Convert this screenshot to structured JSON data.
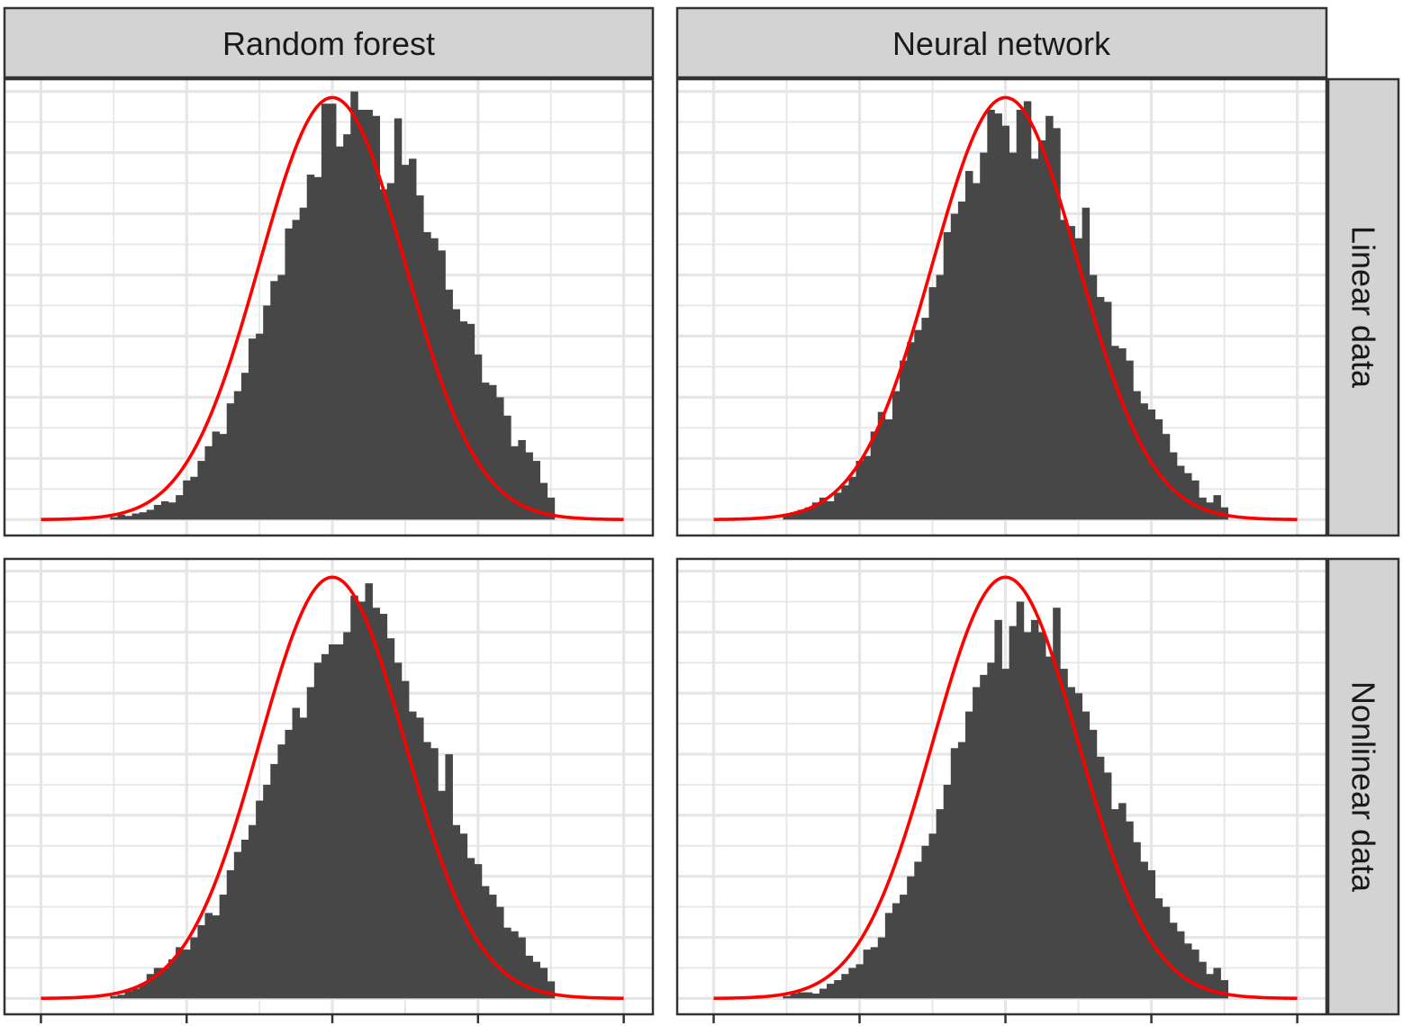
{
  "facets": {
    "columns": [
      "Random forest",
      "Neural network"
    ],
    "rows": [
      "Linear data",
      "Nonlinear data"
    ]
  },
  "colors": {
    "bars": "#474747",
    "curve": "#ff0000",
    "strip_fill": "#d3d3d3",
    "grid": "#e6e6e6",
    "panel_border": "#333333"
  },
  "chart_data": {
    "type": "bar",
    "description_of_axes": "histograms with overlaid normal density curve; axis tick labels not visible",
    "x_ticks": [
      -4,
      -2,
      0,
      2,
      4
    ],
    "xlim": [
      -4.5,
      4.4
    ],
    "ylim": [
      -0.13,
      3.6
    ],
    "y_ticks": [
      0,
      0.5,
      1,
      1.5,
      2,
      2.5,
      3,
      3.5
    ],
    "bin_width": 0.1,
    "normal_curve_peak": 3.45,
    "panels": [
      {
        "column": "Random forest",
        "row": "Linear data",
        "bins_x": [
          -3.0,
          -2.9,
          -2.8,
          -2.7,
          -2.6,
          -2.5,
          -2.4,
          -2.3,
          -2.2,
          -2.1,
          -2.0,
          -1.9,
          -1.8,
          -1.7,
          -1.6,
          -1.5,
          -1.4,
          -1.3,
          -1.2,
          -1.1,
          -1.0,
          -0.9,
          -0.8,
          -0.7,
          -0.6,
          -0.5,
          -0.4,
          -0.3,
          -0.2,
          -0.1,
          0.0,
          0.1,
          0.2,
          0.3,
          0.4,
          0.5,
          0.6,
          0.7,
          0.8,
          0.9,
          1.0,
          1.1,
          1.2,
          1.3,
          1.4,
          1.5,
          1.6,
          1.7,
          1.8,
          1.9,
          2.0,
          2.1,
          2.2,
          2.3,
          2.4,
          2.5,
          2.6,
          2.7,
          2.8,
          2.9,
          3.0
        ],
        "counts": [
          0.02,
          0.04,
          0.03,
          0.05,
          0.06,
          0.08,
          0.12,
          0.15,
          0.14,
          0.2,
          0.32,
          0.35,
          0.48,
          0.6,
          0.72,
          0.7,
          0.95,
          1.05,
          1.2,
          1.48,
          1.52,
          1.75,
          1.95,
          2.0,
          2.38,
          2.45,
          2.55,
          2.82,
          2.8,
          3.4,
          3.4,
          3.05,
          3.15,
          3.5,
          3.35,
          3.35,
          3.3,
          2.7,
          2.75,
          3.28,
          2.9,
          2.95,
          2.65,
          2.35,
          2.3,
          2.2,
          1.88,
          1.72,
          1.62,
          1.6,
          1.35,
          1.12,
          1.1,
          1.0,
          0.85,
          0.6,
          0.65,
          0.55,
          0.48,
          0.3,
          0.18
        ]
      },
      {
        "column": "Neural network",
        "row": "Linear data",
        "bins_x": [
          -3.0,
          -2.9,
          -2.8,
          -2.7,
          -2.6,
          -2.5,
          -2.4,
          -2.3,
          -2.2,
          -2.1,
          -2.0,
          -1.9,
          -1.8,
          -1.7,
          -1.6,
          -1.5,
          -1.4,
          -1.3,
          -1.2,
          -1.1,
          -1.0,
          -0.9,
          -0.8,
          -0.7,
          -0.6,
          -0.5,
          -0.4,
          -0.3,
          -0.2,
          -0.1,
          0.0,
          0.1,
          0.2,
          0.3,
          0.4,
          0.5,
          0.6,
          0.7,
          0.8,
          0.9,
          1.0,
          1.1,
          1.2,
          1.3,
          1.4,
          1.5,
          1.6,
          1.7,
          1.8,
          1.9,
          2.0,
          2.1,
          2.2,
          2.3,
          2.4,
          2.5,
          2.6,
          2.7,
          2.8,
          2.9,
          3.0
        ],
        "counts": [
          0.03,
          0.06,
          0.08,
          0.1,
          0.14,
          0.18,
          0.15,
          0.22,
          0.28,
          0.35,
          0.48,
          0.52,
          0.72,
          0.88,
          0.82,
          1.05,
          1.3,
          1.45,
          1.55,
          1.65,
          1.9,
          2.0,
          2.35,
          2.5,
          2.6,
          2.85,
          2.75,
          3.0,
          3.35,
          3.32,
          3.22,
          3.0,
          3.35,
          3.42,
          2.95,
          3.1,
          3.3,
          3.2,
          2.45,
          2.4,
          2.3,
          2.55,
          2.0,
          1.82,
          1.78,
          1.42,
          1.4,
          1.3,
          1.05,
          0.95,
          0.9,
          0.82,
          0.7,
          0.55,
          0.44,
          0.38,
          0.32,
          0.18,
          0.14,
          0.2,
          0.1
        ]
      },
      {
        "column": "Random forest",
        "row": "Nonlinear data",
        "bins_x": [
          -3.0,
          -2.9,
          -2.8,
          -2.7,
          -2.6,
          -2.5,
          -2.4,
          -2.3,
          -2.2,
          -2.1,
          -2.0,
          -1.9,
          -1.8,
          -1.7,
          -1.6,
          -1.5,
          -1.4,
          -1.3,
          -1.2,
          -1.1,
          -1.0,
          -0.9,
          -0.8,
          -0.7,
          -0.6,
          -0.5,
          -0.4,
          -0.3,
          -0.2,
          -0.1,
          0.0,
          0.1,
          0.2,
          0.3,
          0.4,
          0.5,
          0.6,
          0.7,
          0.8,
          0.9,
          1.0,
          1.1,
          1.2,
          1.3,
          1.4,
          1.5,
          1.6,
          1.7,
          1.8,
          1.9,
          2.0,
          2.1,
          2.2,
          2.3,
          2.4,
          2.5,
          2.6,
          2.7,
          2.8,
          2.9,
          3.0
        ],
        "counts": [
          0.02,
          0.03,
          0.06,
          0.08,
          0.12,
          0.2,
          0.25,
          0.25,
          0.32,
          0.42,
          0.4,
          0.5,
          0.6,
          0.7,
          0.68,
          0.85,
          1.05,
          1.2,
          1.3,
          1.42,
          1.62,
          1.75,
          1.92,
          2.08,
          2.2,
          2.38,
          2.3,
          2.55,
          2.75,
          2.82,
          2.9,
          2.9,
          3.0,
          3.3,
          3.25,
          3.4,
          3.2,
          3.15,
          2.95,
          2.75,
          2.6,
          2.35,
          2.3,
          2.1,
          2.05,
          1.7,
          2.0,
          1.42,
          1.35,
          1.15,
          1.1,
          0.92,
          0.85,
          0.75,
          0.58,
          0.55,
          0.5,
          0.35,
          0.3,
          0.25,
          0.14
        ]
      },
      {
        "column": "Neural network",
        "row": "Nonlinear data",
        "bins_x": [
          -3.0,
          -2.9,
          -2.8,
          -2.7,
          -2.6,
          -2.5,
          -2.4,
          -2.3,
          -2.2,
          -2.1,
          -2.0,
          -1.9,
          -1.8,
          -1.7,
          -1.6,
          -1.5,
          -1.4,
          -1.3,
          -1.2,
          -1.1,
          -1.0,
          -0.9,
          -0.8,
          -0.7,
          -0.6,
          -0.5,
          -0.4,
          -0.3,
          -0.2,
          -0.1,
          0.0,
          0.1,
          0.2,
          0.3,
          0.4,
          0.5,
          0.6,
          0.7,
          0.8,
          0.9,
          1.0,
          1.1,
          1.2,
          1.3,
          1.4,
          1.5,
          1.6,
          1.7,
          1.8,
          1.9,
          2.0,
          2.1,
          2.2,
          2.3,
          2.4,
          2.5,
          2.6,
          2.7,
          2.8,
          2.9,
          3.0
        ],
        "counts": [
          0.02,
          0.04,
          0.05,
          0.05,
          0.04,
          0.08,
          0.12,
          0.15,
          0.2,
          0.25,
          0.28,
          0.4,
          0.42,
          0.5,
          0.7,
          0.78,
          0.85,
          1.0,
          1.12,
          1.25,
          1.35,
          1.55,
          1.75,
          2.05,
          2.1,
          2.35,
          2.55,
          2.65,
          2.75,
          3.1,
          2.7,
          3.05,
          3.25,
          3.0,
          3.1,
          3.0,
          2.8,
          3.2,
          2.7,
          2.55,
          2.5,
          2.35,
          2.2,
          1.98,
          1.85,
          1.55,
          1.6,
          1.45,
          1.28,
          1.12,
          1.05,
          0.82,
          0.75,
          0.62,
          0.55,
          0.45,
          0.4,
          0.3,
          0.2,
          0.25,
          0.15
        ]
      }
    ]
  }
}
